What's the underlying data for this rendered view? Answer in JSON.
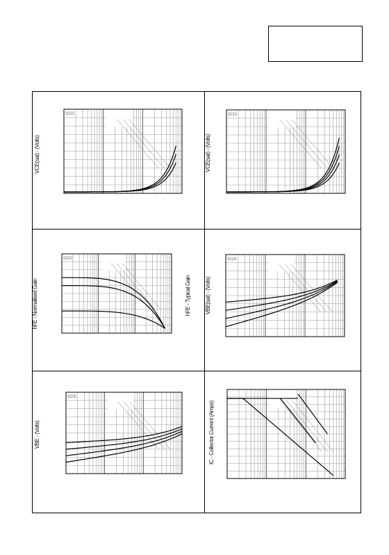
{
  "panels": [
    {
      "code": "9223",
      "y_label": "VCE(sat) - (Volts)"
    },
    {
      "code": "9213",
      "y_label": "VCE(sat) - (Volts)"
    },
    {
      "code": "9202",
      "y_label": "hFE - Normalised Gain",
      "side_label": "hFE - Typical Gain"
    },
    {
      "code": "9218",
      "y_label": "VBE(sat) - (Volts)"
    },
    {
      "code": "9205",
      "y_label": "VBE - (Volts)"
    },
    {
      "code": "",
      "y_label": "IC - Collector Current (Amps)"
    }
  ]
}
